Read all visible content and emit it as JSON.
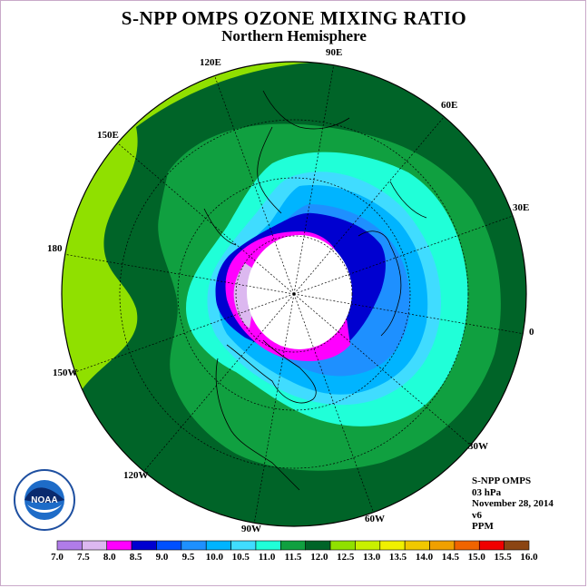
{
  "title": "S-NPP OMPS OZONE MIXING RATIO",
  "subtitle": "Northern Hemisphere",
  "longitude_labels": [
    "90E",
    "60E",
    "30E",
    "0",
    "30W",
    "60W",
    "90W",
    "120W",
    "150W",
    "180",
    "150E",
    "120E"
  ],
  "info": {
    "instrument": "S-NPP OMPS",
    "level": "03 hPa",
    "date": "November 28, 2014",
    "version": "v6",
    "units": "PPM"
  },
  "logo_text": "NOAA",
  "colorbar": {
    "ticks": [
      "7.0",
      "7.5",
      "8.0",
      "8.5",
      "9.0",
      "9.5",
      "10.0",
      "10.5",
      "11.0",
      "11.5",
      "12.0",
      "12.5",
      "13.0",
      "13.5",
      "14.0",
      "14.5",
      "15.0",
      "15.5",
      "16.0"
    ],
    "colors": [
      "#b07ce8",
      "#dcb8f0",
      "#ff00ff",
      "#0000d0",
      "#0050ff",
      "#1e90ff",
      "#00b4ff",
      "#40dcff",
      "#20ffd8",
      "#10a040",
      "#006428",
      "#90e000",
      "#c8f000",
      "#f0f000",
      "#f0c800",
      "#f0a000",
      "#f06400",
      "#f00000",
      "#8b4513"
    ]
  }
}
